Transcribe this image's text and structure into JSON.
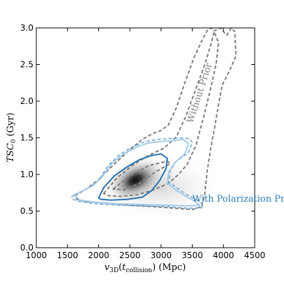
{
  "chart_data": {
    "type": "contour",
    "xlabel": "v_3D(t_collision) (Mpc)",
    "xlabel_parts": {
      "main": "v",
      "sub1": "3D",
      "paren_open": "(",
      "t": "t",
      "sub2": "collision",
      "tail": ") (Mpc)"
    },
    "ylabel": "TSC_0 (Gyr)",
    "ylabel_parts": {
      "main": "TSC",
      "sub": "0",
      "tail": "(Gyr)"
    },
    "xlim": [
      1000,
      4500
    ],
    "ylim": [
      0.0,
      3.0
    ],
    "x_ticks": [
      1000,
      1500,
      2000,
      2500,
      3000,
      3500,
      4000,
      4500
    ],
    "x_tick_labels": [
      "1000",
      "1500",
      "2000",
      "2500",
      "3000",
      "3500",
      "4000",
      "4500"
    ],
    "y_ticks": [
      0.0,
      0.5,
      1.0,
      1.5,
      2.0,
      2.5,
      3.0
    ],
    "y_tick_labels": [
      "0.0",
      "0.5",
      "1.0",
      "1.5",
      "2.0",
      "2.5",
      "3.0"
    ],
    "grid": false,
    "density_peak": [
      2520,
      0.93
    ],
    "annotations": [
      {
        "text": "Without Prior",
        "x": 3660,
        "y": 2.1,
        "rotation": -72,
        "color": "#808080"
      },
      {
        "text": "With Polarization Prior",
        "x": 3500,
        "y": 0.63,
        "color": "#2e7bb4"
      }
    ],
    "series": [
      {
        "color": "#808080",
        "style": "dashed",
        "width": 2,
        "points": [
          [
            1620,
            0.71
          ],
          [
            1800,
            0.8
          ],
          [
            2000,
            0.93
          ],
          [
            2200,
            1.1
          ],
          [
            2450,
            1.3
          ],
          [
            2700,
            1.48
          ],
          [
            2870,
            1.56
          ],
          [
            3000,
            1.6
          ],
          [
            3120,
            1.68
          ],
          [
            3250,
            1.92
          ],
          [
            3380,
            2.25
          ],
          [
            3520,
            2.58
          ],
          [
            3650,
            2.82
          ],
          [
            3750,
            2.98
          ],
          [
            3800,
            3.0
          ],
          [
            3850,
            2.96
          ],
          [
            3950,
            3.0
          ],
          [
            4000,
            2.95
          ],
          [
            4050,
            2.9
          ],
          [
            4100,
            2.96
          ],
          [
            4120,
            3.0
          ],
          [
            4180,
            2.95
          ],
          [
            4200,
            2.62
          ],
          [
            4100,
            2.42
          ],
          [
            3980,
            2.22
          ],
          [
            3920,
            1.95
          ],
          [
            3860,
            1.65
          ],
          [
            3800,
            1.38
          ],
          [
            3740,
            1.05
          ],
          [
            3700,
            0.74
          ],
          [
            3650,
            0.56
          ],
          [
            3500,
            0.52
          ],
          [
            3200,
            0.54
          ],
          [
            2900,
            0.56
          ],
          [
            2500,
            0.58
          ],
          [
            2100,
            0.61
          ],
          [
            1800,
            0.63
          ],
          [
            1650,
            0.66
          ],
          [
            1620,
            0.71
          ]
        ]
      },
      {
        "color": "#808080",
        "style": "dashed",
        "width": 2,
        "points": [
          [
            2080,
            0.74
          ],
          [
            2300,
            0.96
          ],
          [
            2550,
            1.13
          ],
          [
            2800,
            1.26
          ],
          [
            3050,
            1.36
          ],
          [
            3250,
            1.52
          ],
          [
            3400,
            1.8
          ],
          [
            3550,
            2.15
          ],
          [
            3700,
            2.5
          ],
          [
            3800,
            2.78
          ],
          [
            3850,
            2.95
          ],
          [
            3920,
            2.8
          ],
          [
            3880,
            2.5
          ],
          [
            3780,
            2.12
          ],
          [
            3680,
            1.78
          ],
          [
            3560,
            1.4
          ],
          [
            3420,
            1.14
          ],
          [
            3280,
            1.0
          ],
          [
            3120,
            0.88
          ],
          [
            2850,
            0.78
          ],
          [
            2600,
            0.72
          ],
          [
            2350,
            0.7
          ],
          [
            2150,
            0.71
          ],
          [
            2080,
            0.74
          ]
        ]
      },
      {
        "color": "#808080",
        "style": "dashed",
        "width": 2,
        "points": [
          [
            2230,
            0.8
          ],
          [
            2500,
            0.98
          ],
          [
            2800,
            1.12
          ],
          [
            3100,
            1.18
          ],
          [
            3150,
            1.15
          ],
          [
            2900,
            1.03
          ],
          [
            2650,
            0.88
          ],
          [
            2400,
            0.79
          ],
          [
            2230,
            0.8
          ]
        ]
      },
      {
        "color": "#5e9fd0",
        "style": "dashed",
        "width": 1.4,
        "points": [
          [
            1570,
            0.7
          ],
          [
            1700,
            0.76
          ],
          [
            1850,
            0.82
          ],
          [
            2000,
            0.92
          ],
          [
            2150,
            1.12
          ],
          [
            2350,
            1.28
          ],
          [
            2550,
            1.38
          ],
          [
            2750,
            1.45
          ],
          [
            2950,
            1.48
          ],
          [
            3150,
            1.49
          ],
          [
            3350,
            1.5
          ],
          [
            3450,
            1.49
          ],
          [
            3500,
            1.44
          ],
          [
            3440,
            1.3
          ],
          [
            3250,
            1.18
          ],
          [
            3150,
            1.06
          ],
          [
            3120,
            0.9
          ],
          [
            3280,
            0.8
          ],
          [
            3420,
            0.72
          ],
          [
            3560,
            0.66
          ],
          [
            3680,
            0.59
          ],
          [
            3640,
            0.54
          ],
          [
            3400,
            0.54
          ],
          [
            3100,
            0.56
          ],
          [
            2700,
            0.57
          ],
          [
            2300,
            0.58
          ],
          [
            1950,
            0.6
          ],
          [
            1700,
            0.63
          ],
          [
            1580,
            0.66
          ],
          [
            1570,
            0.7
          ]
        ]
      },
      {
        "color": "#a6cbe8",
        "style": "solid",
        "width": 2,
        "points": [
          [
            1600,
            0.72
          ],
          [
            1750,
            0.78
          ],
          [
            1900,
            0.84
          ],
          [
            2050,
            0.96
          ],
          [
            2200,
            1.14
          ],
          [
            2400,
            1.28
          ],
          [
            2600,
            1.37
          ],
          [
            2800,
            1.43
          ],
          [
            3000,
            1.45
          ],
          [
            3200,
            1.46
          ],
          [
            3350,
            1.48
          ],
          [
            3440,
            1.42
          ],
          [
            3380,
            1.28
          ],
          [
            3220,
            1.16
          ],
          [
            3120,
            1.03
          ],
          [
            3100,
            0.88
          ],
          [
            3250,
            0.78
          ],
          [
            3400,
            0.7
          ],
          [
            3530,
            0.64
          ],
          [
            3620,
            0.58
          ],
          [
            3400,
            0.57
          ],
          [
            3100,
            0.58
          ],
          [
            2700,
            0.59
          ],
          [
            2300,
            0.6
          ],
          [
            1950,
            0.62
          ],
          [
            1700,
            0.65
          ],
          [
            1600,
            0.72
          ]
        ]
      },
      {
        "color": "#2a74b0",
        "style": "solid",
        "width": 2,
        "points": [
          [
            2000,
            0.68
          ],
          [
            2080,
            0.82
          ],
          [
            2250,
            0.98
          ],
          [
            2450,
            1.1
          ],
          [
            2650,
            1.2
          ],
          [
            2850,
            1.26
          ],
          [
            3000,
            1.28
          ],
          [
            3100,
            1.22
          ],
          [
            3080,
            1.08
          ],
          [
            2980,
            0.92
          ],
          [
            2850,
            0.78
          ],
          [
            2700,
            0.69
          ],
          [
            2450,
            0.66
          ],
          [
            2200,
            0.65
          ],
          [
            2040,
            0.66
          ],
          [
            2000,
            0.68
          ]
        ]
      }
    ]
  }
}
